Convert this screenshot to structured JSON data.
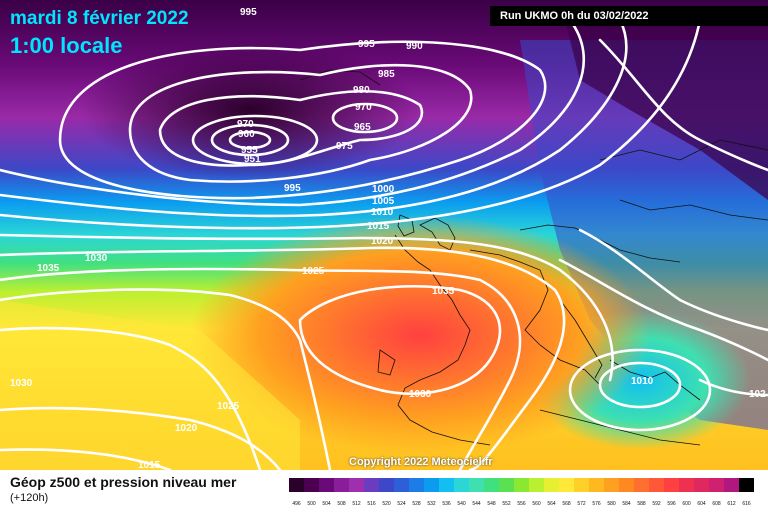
{
  "header": {
    "date": "mardi 8 février 2022",
    "time": "1:00 locale"
  },
  "run_label": "Run UKMO 0h du 03/02/2022",
  "copyright": "Copyright 2022 Meteociel.fr",
  "footer": {
    "title": "Géop z500 et pression niveau mer",
    "subtitle": "(+120h)"
  },
  "isobar_labels": [
    "995",
    "995",
    "990",
    "985",
    "980",
    "970",
    "970",
    "960",
    "955",
    "951",
    "965",
    "975",
    "995",
    "1000",
    "1005",
    "1010",
    "1015",
    "1020",
    "1030",
    "1035",
    "1025",
    "1035",
    "1030",
    "1030",
    "1025",
    "1020",
    "1015",
    "1010",
    "102"
  ],
  "colors": {
    "title": "#00e5ff",
    "low_purple": "#5a0a6e",
    "high_red": "#ff4040",
    "contour": "#ffffff"
  },
  "scale_labels": [
    "496",
    "500",
    "504",
    "508",
    "512",
    "516",
    "520",
    "524",
    "528",
    "532",
    "536",
    "540",
    "544",
    "548",
    "552",
    "556",
    "560",
    "564",
    "568",
    "572",
    "576",
    "580",
    "584",
    "588",
    "592",
    "596",
    "600",
    "604",
    "608",
    "612",
    "616"
  ],
  "scale_colors": [
    "#2b002b",
    "#4b0050",
    "#6a0a78",
    "#8a1e9a",
    "#a02fb0",
    "#6a3cc0",
    "#3c48c8",
    "#2c5fd8",
    "#1c7ce8",
    "#0b9cf0",
    "#11c0f0",
    "#2ad6d6",
    "#3ee0b0",
    "#40e080",
    "#5ae050",
    "#8ae830",
    "#bbf030",
    "#e6f030",
    "#ffe838",
    "#ffd028",
    "#ffb820",
    "#ffa020",
    "#ff8820",
    "#ff7030",
    "#ff5838",
    "#ff4040",
    "#f03050",
    "#e02860",
    "#d02070",
    "#b01880",
    "#000000"
  ]
}
